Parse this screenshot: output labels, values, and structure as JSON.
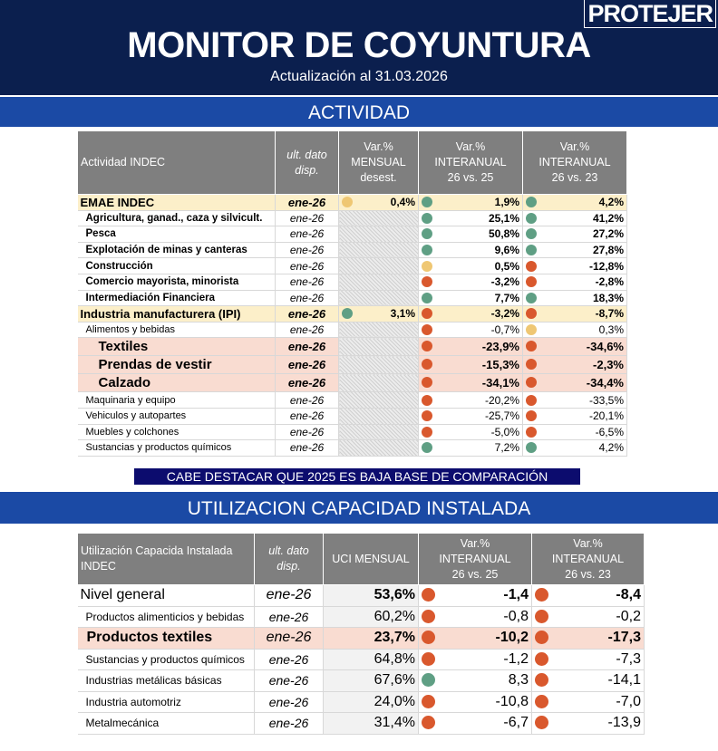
{
  "header": {
    "title": "MONITOR DE COYUNTURA",
    "subtitle": "Actualización al 31.03.2026",
    "logo": "PROTEJER"
  },
  "sections": [
    "ACTIVIDAD",
    "UTILIZACION CAPACIDAD INSTALADA"
  ],
  "note": "CABE DESTACAR QUE 2025 ES BAJA BASE DE COMPARACIÓN",
  "dot_colors": {
    "g": "#5f9f84",
    "r": "#d9582d",
    "y": "#efc773"
  },
  "row_colors": {
    "total": "#fcefc9",
    "highlight": "#f9dcd1"
  },
  "activity_table": {
    "header": [
      "Actividad INDEC",
      "ult. dato\ndisp.",
      "Var.%\nMENSUAL\ndesest.",
      "Var.%\nINTERANUAL\n26 vs. 25",
      "Var.%\nINTERANUAL\n26 vs. 23"
    ],
    "rows": [
      {
        "name": "EMAE INDEC",
        "date": "ene-26",
        "style": "total",
        "cells": [
          {
            "value": "0,4%",
            "dot": "y"
          },
          {
            "value": "1,9%",
            "dot": "g"
          },
          {
            "value": "4,2%",
            "dot": "g"
          }
        ]
      },
      {
        "name": "Agricultura, ganad., caza y silvicult.",
        "date": "ene-26",
        "style": "item",
        "cells": [
          null,
          {
            "value": "25,1%",
            "dot": "g"
          },
          {
            "value": "41,2%",
            "dot": "g"
          }
        ]
      },
      {
        "name": "Pesca",
        "date": "ene-26",
        "style": "item",
        "cells": [
          null,
          {
            "value": "50,8%",
            "dot": "g"
          },
          {
            "value": "27,2%",
            "dot": "g"
          }
        ]
      },
      {
        "name": "Explotación de minas y canteras",
        "date": "ene-26",
        "style": "item",
        "cells": [
          null,
          {
            "value": "9,6%",
            "dot": "g"
          },
          {
            "value": "27,8%",
            "dot": "g"
          }
        ]
      },
      {
        "name": "Construcción",
        "date": "ene-26",
        "style": "item",
        "cells": [
          null,
          {
            "value": "0,5%",
            "dot": "y"
          },
          {
            "value": "-12,8%",
            "dot": "r"
          }
        ]
      },
      {
        "name": "Comercio mayorista, minorista",
        "date": "ene-26",
        "style": "item",
        "cells": [
          null,
          {
            "value": "-3,2%",
            "dot": "r"
          },
          {
            "value": "-2,8%",
            "dot": "r"
          }
        ]
      },
      {
        "name": "Intermediación Financiera",
        "date": "ene-26",
        "style": "item",
        "cells": [
          null,
          {
            "value": "7,7%",
            "dot": "g"
          },
          {
            "value": "18,3%",
            "dot": "g"
          }
        ]
      },
      {
        "name": "Industria manufacturera (IPI)",
        "date": "ene-26",
        "style": "total",
        "cells": [
          {
            "value": "3,1%",
            "dot": "g"
          },
          {
            "value": "-3,2%",
            "dot": "r"
          },
          {
            "value": "-8,7%",
            "dot": "r"
          }
        ]
      },
      {
        "name": "Alimentos y bebidas",
        "date": "ene-26",
        "style": "sub",
        "cells": [
          null,
          {
            "value": "-0,7%",
            "dot": "r"
          },
          {
            "value": "0,3%",
            "dot": "y"
          }
        ]
      },
      {
        "name": "Textiles",
        "date": "ene-26",
        "style": "highlight",
        "cells": [
          null,
          {
            "value": "-23,9%",
            "dot": "r"
          },
          {
            "value": "-34,6%",
            "dot": "r"
          }
        ]
      },
      {
        "name": "Prendas de vestir",
        "date": "ene-26",
        "style": "highlight",
        "cells": [
          null,
          {
            "value": "-15,3%",
            "dot": "r"
          },
          {
            "value": "-2,3%",
            "dot": "r"
          }
        ]
      },
      {
        "name": "Calzado",
        "date": "ene-26",
        "style": "highlight",
        "cells": [
          null,
          {
            "value": "-34,1%",
            "dot": "r"
          },
          {
            "value": "-34,4%",
            "dot": "r"
          }
        ]
      },
      {
        "name": "Maquinaria y equipo",
        "date": "ene-26",
        "style": "sub",
        "cells": [
          null,
          {
            "value": "-20,2%",
            "dot": "r"
          },
          {
            "value": "-33,5%",
            "dot": "r"
          }
        ]
      },
      {
        "name": "Vehiculos y autopartes",
        "date": "ene-26",
        "style": "sub",
        "cells": [
          null,
          {
            "value": "-25,7%",
            "dot": "r"
          },
          {
            "value": "-20,1%",
            "dot": "r"
          }
        ]
      },
      {
        "name": "Muebles y colchones",
        "date": "ene-26",
        "style": "sub",
        "cells": [
          null,
          {
            "value": "-5,0%",
            "dot": "r"
          },
          {
            "value": "-6,5%",
            "dot": "r"
          }
        ]
      },
      {
        "name": "Sustancias y productos químicos",
        "date": "ene-26",
        "style": "sub",
        "cells": [
          null,
          {
            "value": "7,2%",
            "dot": "g"
          },
          {
            "value": "4,2%",
            "dot": "g"
          }
        ]
      }
    ]
  },
  "capacity_table": {
    "header": [
      "Utilización Capacida Instalada\nINDEC",
      "ult. dato\ndisp.",
      "UCI MENSUAL",
      "Var.%\nINTERANUAL\n26 vs. 25",
      "Var.%\nINTERANUAL\n26 vs. 23"
    ],
    "rows": [
      {
        "name": "Nivel general",
        "date": "ene-26",
        "style": "total",
        "uci": "53,6%",
        "cells": [
          {
            "value": "-1,4",
            "dot": "r"
          },
          {
            "value": "-8,4",
            "dot": "r"
          }
        ]
      },
      {
        "name": "Productos alimenticios y bebidas",
        "date": "ene-26",
        "style": "item",
        "uci": "60,2%",
        "cells": [
          {
            "value": "-0,8",
            "dot": "r"
          },
          {
            "value": "-0,2",
            "dot": "r"
          }
        ]
      },
      {
        "name": "Productos textiles",
        "date": "ene-26",
        "style": "highlight",
        "uci": "23,7%",
        "cells": [
          {
            "value": "-10,2",
            "dot": "r"
          },
          {
            "value": "-17,3",
            "dot": "r"
          }
        ]
      },
      {
        "name": "Sustancias y productos químicos",
        "date": "ene-26",
        "style": "item",
        "uci": "64,8%",
        "cells": [
          {
            "value": "-1,2",
            "dot": "r"
          },
          {
            "value": "-7,3",
            "dot": "r"
          }
        ]
      },
      {
        "name": "Industrias metálicas básicas",
        "date": "ene-26",
        "style": "item",
        "uci": "67,6%",
        "cells": [
          {
            "value": "8,3",
            "dot": "g"
          },
          {
            "value": "-14,1",
            "dot": "r"
          }
        ]
      },
      {
        "name": "Industria automotriz",
        "date": "ene-26",
        "style": "item",
        "uci": "24,0%",
        "cells": [
          {
            "value": "-10,8",
            "dot": "r"
          },
          {
            "value": "-7,0",
            "dot": "r"
          }
        ]
      },
      {
        "name": "Metalmecánica",
        "date": "ene-26",
        "style": "item",
        "uci": "31,4%",
        "cells": [
          {
            "value": "-6,7",
            "dot": "r"
          },
          {
            "value": "-13,9",
            "dot": "r"
          }
        ]
      }
    ]
  }
}
